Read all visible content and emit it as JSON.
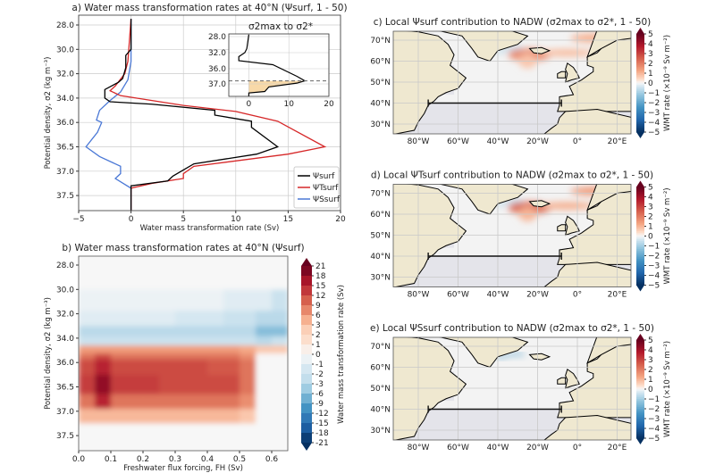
{
  "chart_data": [
    {
      "panel": "a",
      "type": "line",
      "title": "a) Water mass transformation rates at 40°N (Ψsurf, 1 - 50)",
      "xlabel": "Water mass transformation rate (Sv)",
      "ylabel": "Potential density, σ2 (kg m⁻³)",
      "xlim": [
        -5,
        20
      ],
      "xticks": [
        "−5",
        "0",
        "5",
        "10",
        "15",
        "20"
      ],
      "yticks": [
        "28.0",
        "30.0",
        "32.0",
        "34.0",
        "36.0",
        "36.5",
        "37.0",
        "37.5"
      ],
      "y_inverted": true,
      "grid": true,
      "legend_position": "lower-right",
      "series": [
        {
          "name": "Ψsurf",
          "color": "#000000",
          "points": [
            [
              0,
              27.5
            ],
            [
              0,
              30
            ],
            [
              -0.5,
              30.5
            ],
            [
              -0.5,
              31.5
            ],
            [
              -0.8,
              32.4
            ],
            [
              -1.2,
              32.7
            ],
            [
              -2.5,
              33.3
            ],
            [
              -2.5,
              34.0
            ],
            [
              -2,
              34.3
            ],
            [
              2,
              34.5
            ],
            [
              8,
              35.0
            ],
            [
              8,
              35.4
            ],
            [
              11.5,
              35.9
            ],
            [
              11.5,
              36.1
            ],
            [
              14,
              36.5
            ],
            [
              12,
              36.65
            ],
            [
              6,
              36.85
            ],
            [
              4,
              37.1
            ],
            [
              3.5,
              37.2
            ],
            [
              0,
              37.3
            ],
            [
              0,
              37.8
            ]
          ]
        },
        {
          "name": "ΨTsurf",
          "color": "#d62728",
          "points": [
            [
              0,
              27.5
            ],
            [
              -0.3,
              31
            ],
            [
              -0.6,
              32
            ],
            [
              -1.5,
              33
            ],
            [
              -2,
              33.4
            ],
            [
              -1,
              33.8
            ],
            [
              5,
              34.6
            ],
            [
              10,
              35.1
            ],
            [
              14,
              35.9
            ],
            [
              18.5,
              36.5
            ],
            [
              15,
              36.65
            ],
            [
              6,
              36.9
            ],
            [
              5,
              37.05
            ],
            [
              5,
              37.15
            ],
            [
              2,
              37.25
            ],
            [
              0,
              37.35
            ],
            [
              0,
              37.8
            ]
          ]
        },
        {
          "name": "ΨSsurf",
          "color": "#4a78d6",
          "points": [
            [
              0,
              27.5
            ],
            [
              0,
              31
            ],
            [
              -0.3,
              32.5
            ],
            [
              -1,
              33.5
            ],
            [
              -2,
              34.2
            ],
            [
              -3,
              35.0
            ],
            [
              -3.3,
              35.8
            ],
            [
              -2.8,
              36
            ],
            [
              -3.2,
              36.2
            ],
            [
              -4.3,
              36.5
            ],
            [
              -3,
              36.7
            ],
            [
              -1,
              36.9
            ],
            [
              -1,
              37.05
            ],
            [
              -1.5,
              37.15
            ],
            [
              0,
              37.35
            ],
            [
              0,
              37.8
            ]
          ]
        }
      ],
      "inset": {
        "title": "σ2max to σ2*",
        "xlim": [
          -5,
          20
        ],
        "xticks": [
          "0",
          "10",
          "20"
        ],
        "yticks": [
          "28.0",
          "32.0",
          "36.0",
          "37.0"
        ],
        "dashed_line_density": 36.8,
        "fill_color": "#f8d9a8",
        "points": [
          [
            0,
            27.5
          ],
          [
            -0.5,
            31
          ],
          [
            -1,
            32
          ],
          [
            -2.5,
            33
          ],
          [
            -2.5,
            34
          ],
          [
            6,
            35
          ],
          [
            12,
            36.5
          ],
          [
            14,
            36.8
          ],
          [
            12,
            36.95
          ],
          [
            5,
            37.2
          ],
          [
            4,
            37.5
          ],
          [
            0,
            37.6
          ],
          [
            0,
            38
          ]
        ]
      }
    },
    {
      "panel": "b",
      "type": "heatmap",
      "title": "b) Water mass transformation rates at 40°N (Ψsurf)",
      "xlabel": "Freshwater flux forcing, FH (Sv)",
      "ylabel": "Potential density, σ2 (kg m⁻³)",
      "xlim": [
        0,
        0.65
      ],
      "xticks": [
        "0.0",
        "0.1",
        "0.2",
        "0.3",
        "0.4",
        "0.5",
        "0.6"
      ],
      "yticks": [
        "28.0",
        "30.0",
        "32.0",
        "34.0",
        "36.0",
        "36.5",
        "37.0",
        "37.5"
      ],
      "colorbar_label": "Water mass transformation rate (Sv)",
      "colorbar_ticks": [
        "21",
        "18",
        "15",
        "12",
        "9",
        "6",
        "3",
        "2",
        "1",
        "0",
        "-1",
        "-2",
        "-3",
        "-6",
        "-9",
        "-12",
        "-15",
        "-18",
        "-21"
      ],
      "x": [
        0.025,
        0.075,
        0.125,
        0.175,
        0.225,
        0.275,
        0.325,
        0.375,
        0.425,
        0.475,
        0.525,
        0.575,
        0.625
      ],
      "y": [
        29,
        31,
        32.5,
        33.5,
        34.2,
        35,
        35.5,
        36,
        36.5,
        36.8,
        37.1,
        37.4
      ],
      "values": [
        [
          0,
          0,
          0,
          0,
          0,
          0,
          0,
          0,
          0,
          0,
          0,
          0,
          0
        ],
        [
          -0.5,
          -0.5,
          -0.5,
          -0.5,
          -0.5,
          -0.5,
          -0.5,
          -0.5,
          -0.5,
          -1,
          -1,
          -1,
          -2
        ],
        [
          -1,
          -1,
          -1,
          -1,
          -1,
          -1,
          -1.5,
          -1.5,
          -1.5,
          -2,
          -2,
          -3,
          -3
        ],
        [
          -3,
          -3,
          -3,
          -3,
          -3,
          -3,
          -3,
          -3,
          -3,
          -3,
          -3,
          -6,
          -6
        ],
        [
          -2,
          -2,
          -2,
          -2,
          -2,
          -2,
          -2,
          -2,
          -2,
          -2,
          -2,
          -3,
          -2
        ],
        [
          6,
          6,
          6,
          6,
          6,
          6,
          6,
          6,
          6,
          6,
          5,
          3,
          3
        ],
        [
          9,
          12,
          9,
          9,
          9,
          9,
          9,
          9,
          9,
          9,
          7,
          0,
          0
        ],
        [
          12,
          15,
          12,
          12,
          12,
          12,
          12,
          12,
          11,
          11,
          9,
          0,
          0
        ],
        [
          13,
          18,
          13,
          13,
          13,
          12,
          12,
          12,
          12,
          12,
          9,
          0,
          0
        ],
        [
          9,
          15,
          9,
          9,
          9,
          9,
          9,
          9,
          9,
          9,
          7,
          0,
          0
        ],
        [
          4,
          4,
          4,
          4,
          4,
          4,
          4,
          4,
          4,
          4,
          3,
          0,
          0
        ],
        [
          0,
          0,
          0,
          0,
          0,
          0,
          0,
          0,
          0,
          0,
          0,
          0,
          0
        ]
      ]
    },
    {
      "panel": "c",
      "type": "heatmap",
      "title": "c) Local Ψsurf contribution to NADW (σ2max to σ2*, 1 - 50)",
      "feature": "positive",
      "xticks": [
        "80°W",
        "60°W",
        "40°W",
        "20°W",
        "0°",
        "20°E"
      ],
      "yticks": [
        "70°N",
        "60°N",
        "50°N",
        "40°N",
        "30°N"
      ],
      "colorbar_label": "WMT rate (×10⁻⁹ Sv m⁻²)",
      "colorbar_ticks": [
        "5",
        "4",
        "3",
        "2",
        "1",
        "0",
        "−1",
        "−2",
        "−3",
        "−4",
        "−5"
      ],
      "section": {
        "lat": 40,
        "lon_start": -75,
        "lon_end": -8
      }
    },
    {
      "panel": "d",
      "type": "heatmap",
      "title": "d) Local ΨTsurf contribution to NADW (σ2max to σ2*, 1 - 50)",
      "feature": "positive-strong",
      "xticks": [
        "80°W",
        "60°W",
        "40°W",
        "20°W",
        "0°",
        "20°E"
      ],
      "yticks": [
        "70°N",
        "60°N",
        "50°N",
        "40°N",
        "30°N"
      ],
      "colorbar_label": "WMT rate (×10⁻⁹ Sv m⁻²)",
      "colorbar_ticks": [
        "5",
        "4",
        "3",
        "2",
        "1",
        "0",
        "−1",
        "−2",
        "−3",
        "−4",
        "−5"
      ],
      "section": {
        "lat": 40,
        "lon_start": -75,
        "lon_end": -8
      }
    },
    {
      "panel": "e",
      "type": "heatmap",
      "title": "e) Local ΨSsurf contribution to NADW (σ2max to σ2*, 1 - 50)",
      "feature": "negative",
      "xticks": [
        "80°W",
        "60°W",
        "40°W",
        "20°W",
        "0°",
        "20°E"
      ],
      "yticks": [
        "70°N",
        "60°N",
        "50°N",
        "40°N",
        "30°N"
      ],
      "colorbar_label": "WMT rate (×10⁻⁹ Sv m⁻²)",
      "colorbar_ticks": [
        "5",
        "4",
        "3",
        "2",
        "1",
        "0",
        "−1",
        "−2",
        "−3",
        "−4",
        "−5"
      ],
      "section": {
        "lat": 40,
        "lon_start": -75,
        "lon_end": -8
      }
    }
  ],
  "colors": {
    "land": "#efe8d0",
    "ocean": "#f3f3f3",
    "masked_ocean": "#e4e4ea",
    "grid": "#c8c8c8"
  }
}
